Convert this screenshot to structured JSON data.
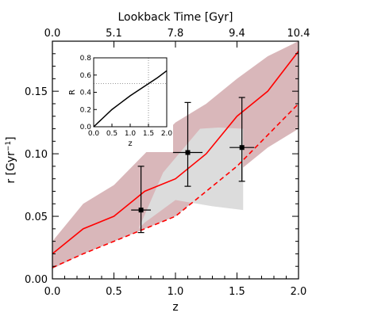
{
  "chart_data": [
    {
      "type": "line",
      "xlabel": "z",
      "ylabel": "r [Gyr",
      "ylabel_sup": "−1",
      "ylabel_end": "]",
      "top_axis_label": "Lookback Time [Gyr]",
      "xlim": [
        0.0,
        2.0
      ],
      "ylim": [
        0.0,
        0.19
      ],
      "x_ticks": [
        0.0,
        0.5,
        1.0,
        1.5,
        2.0
      ],
      "x_tick_labels": [
        "0.0",
        "0.5",
        "1.0",
        "1.5",
        "2.0"
      ],
      "y_ticks": [
        0.0,
        0.05,
        0.1,
        0.15
      ],
      "y_tick_labels": [
        "0.00",
        "0.05",
        "0.10",
        "0.15"
      ],
      "top_ticks_z": [
        0.0,
        0.5,
        1.0,
        1.5,
        2.0
      ],
      "top_tick_labels": [
        "0.0",
        "5.1",
        "7.8",
        "9.4",
        "10.4"
      ],
      "colors": {
        "model": "#ff0000",
        "model_band": "#d9b7ba",
        "obs_band": "#dcdcdc",
        "points": "#000000"
      },
      "series": [
        {
          "kind": "band",
          "x": [
            0.0,
            0.25,
            0.5,
            0.75,
            1.0,
            1.25,
            1.5,
            1.75,
            2.0
          ],
          "y_low": [
            0.008,
            0.02,
            0.03,
            0.04,
            0.05,
            0.07,
            0.085,
            0.105,
            0.12
          ],
          "y_high": [
            0.03,
            0.06,
            0.075,
            0.1,
            0.125,
            0.14,
            0.16,
            0.178,
            0.19
          ]
        },
        {
          "kind": "band",
          "x": [
            0.7,
            0.9,
            1.2,
            1.35,
            1.55,
            1.55,
            1.3,
            1.0,
            0.75
          ],
          "y": [
            0.04,
            0.085,
            0.12,
            0.121,
            0.12,
            0.055,
            0.058,
            0.063,
            0.045
          ]
        },
        {
          "kind": "solid",
          "x": [
            0.0,
            0.25,
            0.5,
            0.75,
            1.0,
            1.25,
            1.5,
            1.75,
            2.0
          ],
          "y": [
            0.02,
            0.04,
            0.05,
            0.07,
            0.08,
            0.1,
            0.13,
            0.15,
            0.182
          ]
        },
        {
          "kind": "dashed",
          "x": [
            0.0,
            0.25,
            0.5,
            0.75,
            1.0,
            1.25,
            1.5,
            1.75,
            2.0
          ],
          "y": [
            0.009,
            0.02,
            0.03,
            0.04,
            0.05,
            0.07,
            0.09,
            0.115,
            0.14
          ]
        },
        {
          "kind": "points",
          "x": [
            0.72,
            1.1,
            1.54
          ],
          "y": [
            0.055,
            0.101,
            0.105
          ],
          "x_err": [
            0.08,
            0.12,
            0.1
          ],
          "y_err_low": [
            0.018,
            0.027,
            0.027
          ],
          "y_err_high": [
            0.035,
            0.04,
            0.04
          ]
        }
      ]
    },
    {
      "type": "line",
      "inset": true,
      "xlabel": "z",
      "ylabel": "R",
      "xlim": [
        0.0,
        2.0
      ],
      "ylim": [
        0.0,
        0.8
      ],
      "x_ticks": [
        0.0,
        0.5,
        1.0,
        1.5,
        2.0
      ],
      "x_tick_labels": [
        "0.0",
        "0.5",
        "1.0",
        "1.5",
        "2.0"
      ],
      "y_ticks": [
        0.0,
        0.2,
        0.4,
        0.6,
        0.8
      ],
      "y_tick_labels": [
        "0.0",
        "0.2",
        "0.4",
        "0.6",
        "0.8"
      ],
      "reference_x": 1.5,
      "reference_y": 0.5,
      "series": [
        {
          "kind": "solid",
          "x": [
            0.0,
            0.25,
            0.5,
            0.75,
            1.0,
            1.25,
            1.5,
            1.75,
            2.0
          ],
          "y": [
            0.0,
            0.1,
            0.2,
            0.28,
            0.36,
            0.43,
            0.5,
            0.57,
            0.65
          ]
        }
      ]
    }
  ]
}
